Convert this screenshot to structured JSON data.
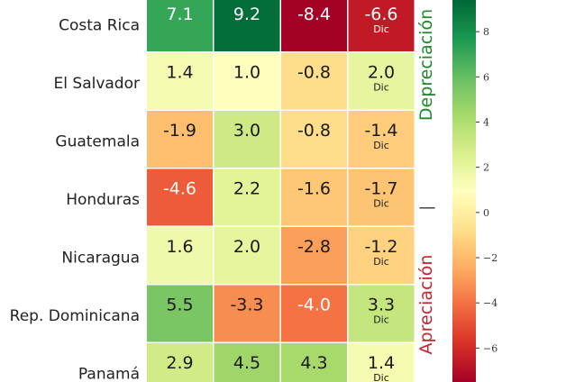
{
  "chart_data": {
    "type": "heatmap",
    "rows": [
      "Costa Rica",
      "El Salvador",
      "Guatemala",
      "Honduras",
      "Nicaragua",
      "Rep. Dominicana",
      "Panamá"
    ],
    "values": [
      [
        7.1,
        9.2,
        -8.4,
        -6.6
      ],
      [
        1.4,
        1.0,
        -0.8,
        2.0
      ],
      [
        -1.9,
        3.0,
        -0.8,
        -1.4
      ],
      [
        -4.6,
        2.2,
        -1.6,
        -1.7
      ],
      [
        1.6,
        2.0,
        -2.8,
        -1.2
      ],
      [
        5.5,
        -3.3,
        -4.0,
        3.3
      ],
      [
        2.9,
        4.5,
        4.3,
        1.4
      ]
    ],
    "labels": [
      [
        "7.1",
        "9.2",
        "-8.4",
        "-6.6"
      ],
      [
        "1.4",
        "1.0",
        "-0.8",
        "2.0"
      ],
      [
        "-1.9",
        "3.0",
        "-0.8",
        "-1.4"
      ],
      [
        "-4.6",
        "2.2",
        "-1.6",
        "-1.7"
      ],
      [
        "1.6",
        "2.0",
        "-2.8",
        "-1.2"
      ],
      [
        "5.5",
        "-3.3",
        "-4.0",
        "3.3"
      ],
      [
        "2.9",
        "4.5",
        "4.3",
        "1.4"
      ]
    ],
    "cell_note": "Dic",
    "cell_note_column": 3,
    "colormap": "RdYlGn",
    "vmin": -7.5,
    "vmax": 9.4,
    "colorbar": {
      "ticks": [
        8,
        6,
        4,
        2,
        0,
        -2,
        -4,
        -6
      ],
      "tick_labels": [
        "8",
        "6",
        "4",
        "2",
        "0",
        "−2",
        "−4",
        "−6"
      ]
    },
    "side_labels": {
      "top": "Depreciación",
      "bottom": "Apreciación",
      "top_color": "#1a8a2a",
      "bottom_color": "#c8232c",
      "divider": "—"
    },
    "grid": false,
    "legend": "none"
  }
}
